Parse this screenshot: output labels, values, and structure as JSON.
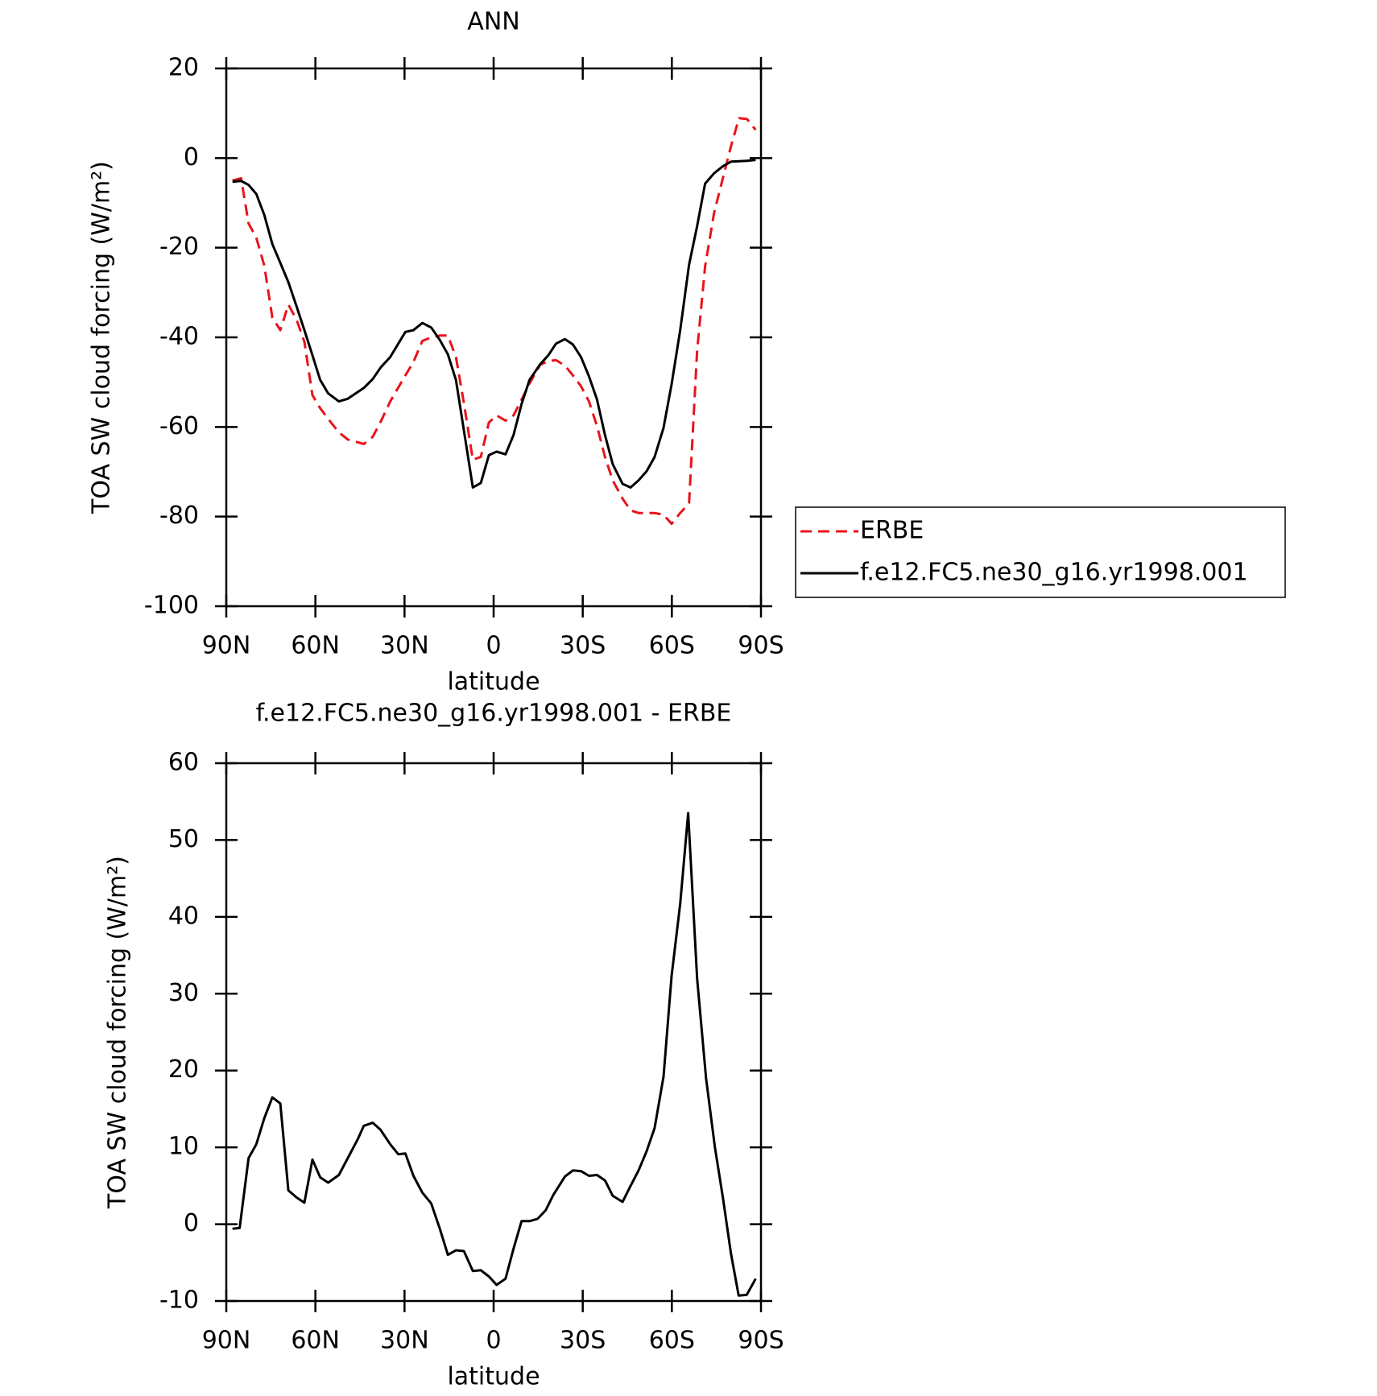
{
  "chart_data": [
    {
      "type": "line",
      "title": "ANN",
      "x_label": "latitude",
      "y_label": "TOA SW cloud forcing (W/m²)",
      "xlim": [
        90,
        -90
      ],
      "xticks": [
        {
          "value": 90,
          "label": "90N"
        },
        {
          "value": 60,
          "label": "60N"
        },
        {
          "value": 30,
          "label": "30N"
        },
        0,
        {
          "value": -30,
          "label": "30S"
        },
        {
          "value": -60,
          "label": "60S"
        },
        {
          "value": -90,
          "label": "90S"
        }
      ],
      "ylim": [
        -100,
        20
      ],
      "yticks": [
        -100,
        -80,
        -60,
        -40,
        -20,
        0,
        20
      ],
      "legend": "right",
      "x": [
        87.9,
        85,
        82.5,
        79.9,
        77.2,
        74.5,
        71.8,
        69.1,
        66.4,
        63.7,
        61,
        58.4,
        55.7,
        52.1,
        49.1,
        43.7,
        40.7,
        38,
        34.8,
        29.7,
        27,
        24,
        21,
        18.1,
        15.4,
        12.7,
        10,
        7,
        4.3,
        1.6,
        -1,
        -4,
        -6.7,
        -9.4,
        -12.1,
        -15.7,
        -18.4,
        -21,
        -24,
        -26.7,
        -29.4,
        -32.1,
        -34.8,
        -37.5,
        -40.1,
        -43.4,
        -46.1,
        -48.8,
        -51.5,
        -54.2,
        -57.2,
        -59.9,
        -62.8,
        -65.8,
        -68.5,
        -71.2,
        -74.2,
        -77.2,
        -79.9,
        -82.6,
        -85.3,
        -88.2
      ],
      "series": [
        {
          "name": "ERBE",
          "color": "#e8141c",
          "linestyle": "dashed",
          "values": [
            -5,
            -4.5,
            -14.6,
            -17.8,
            -24,
            -35.6,
            -38.4,
            -32.7,
            -36,
            -41,
            -52.9,
            -55.8,
            -58.2,
            -61.2,
            -62.8,
            -63.8,
            -62.2,
            -58.8,
            -54.3,
            -48.5,
            -45.5,
            -40.8,
            -40,
            -39.6,
            -39.6,
            -44.4,
            -54.7,
            -67.3,
            -66.7,
            -59,
            -57.4,
            -58.6,
            -57.4,
            -53.9,
            -50.3,
            -46.1,
            -45.3,
            -45.1,
            -46.3,
            -48.5,
            -50.9,
            -54.3,
            -59.8,
            -66.7,
            -71.9,
            -76,
            -78.6,
            -79.2,
            -79.2,
            -79.2,
            -79.6,
            -81.6,
            -79.2,
            -77,
            -43,
            -24.2,
            -12.3,
            -4.4,
            2.6,
            8.9,
            8.7,
            6.3
          ]
        },
        {
          "name": "f.e12.FC5.ne30_g16.yr1998.001",
          "color": "#000000",
          "linestyle": "solid",
          "values": [
            -5.3,
            -5.1,
            -6,
            -8,
            -12.7,
            -19.2,
            -23.4,
            -27.7,
            -33,
            -38.4,
            -44,
            -49.5,
            -52.5,
            -54.3,
            -53.7,
            -51.3,
            -49.3,
            -46.7,
            -44.4,
            -38.8,
            -38.4,
            -36.8,
            -37.8,
            -40.6,
            -43.8,
            -49.5,
            -60.8,
            -73.5,
            -72.5,
            -66.3,
            -65.5,
            -66.1,
            -61.8,
            -54.9,
            -49.5,
            -46,
            -44,
            -41.4,
            -40.4,
            -41.6,
            -44.4,
            -48.7,
            -53.9,
            -61.8,
            -68.3,
            -72.7,
            -73.5,
            -71.9,
            -69.9,
            -66.7,
            -60.2,
            -50.5,
            -38.4,
            -23.8,
            -15.2,
            -5.7,
            -3.4,
            -1.8,
            -0.8,
            -0.7,
            -0.6,
            -0.4
          ]
        }
      ]
    },
    {
      "type": "line",
      "title": "f.e12.FC5.ne30_g16.yr1998.001 - ERBE",
      "x_label": "latitude",
      "y_label": "TOA SW cloud forcing (W/m²)",
      "xlim": [
        90,
        -90
      ],
      "xticks": [
        {
          "value": 90,
          "label": "90N"
        },
        {
          "value": 60,
          "label": "60N"
        },
        {
          "value": 30,
          "label": "30N"
        },
        0,
        {
          "value": -30,
          "label": "30S"
        },
        {
          "value": -60,
          "label": "60S"
        },
        {
          "value": -90,
          "label": "90S"
        }
      ],
      "ylim": [
        -10,
        60
      ],
      "yticks": [
        -10,
        0,
        10,
        20,
        30,
        40,
        50,
        60
      ],
      "x": [
        87.9,
        85.5,
        82.5,
        79.9,
        77.2,
        74.5,
        71.8,
        69.1,
        66.4,
        63.7,
        61,
        58.4,
        55.7,
        52.1,
        49.1,
        45.8,
        43.7,
        40.7,
        38.1,
        34.8,
        32.1,
        29.7,
        27,
        24,
        21,
        18.1,
        15.4,
        12.7,
        10,
        7,
        4.3,
        1.6,
        -1,
        -4,
        -6.7,
        -9.4,
        -12.1,
        -14.8,
        -17.5,
        -20.1,
        -24,
        -26.7,
        -29.4,
        -32.1,
        -34.8,
        -37.5,
        -40.1,
        -43.4,
        -46.1,
        -48.8,
        -51.5,
        -54.2,
        -57.2,
        -59.9,
        -62.8,
        -65.5,
        -68.5,
        -71.5,
        -74.5,
        -77.2,
        -79.9,
        -82.5,
        -85.2,
        -88.2
      ],
      "series": [
        {
          "color": "#000000",
          "linestyle": "solid",
          "values": [
            -0.6,
            -0.5,
            8.6,
            10.4,
            13.8,
            16.5,
            15.7,
            4.4,
            3.5,
            2.8,
            8.4,
            6.1,
            5.4,
            6.4,
            8.6,
            11,
            12.8,
            13.2,
            12.3,
            10.4,
            9.1,
            9.2,
            6.3,
            4.1,
            2.7,
            -0.6,
            -4,
            -3.4,
            -3.5,
            -6.1,
            -6,
            -6.8,
            -7.9,
            -7.1,
            -3.2,
            0.4,
            0.4,
            0.7,
            1.8,
            3.8,
            6.2,
            7,
            6.9,
            6.3,
            6.4,
            5.7,
            3.7,
            2.9,
            5,
            7,
            9.5,
            12.5,
            19.2,
            32.3,
            41.7,
            53.5,
            32,
            19,
            10,
            3.4,
            -3.8,
            -9.3,
            -9.2,
            -7.1
          ]
        }
      ]
    }
  ]
}
